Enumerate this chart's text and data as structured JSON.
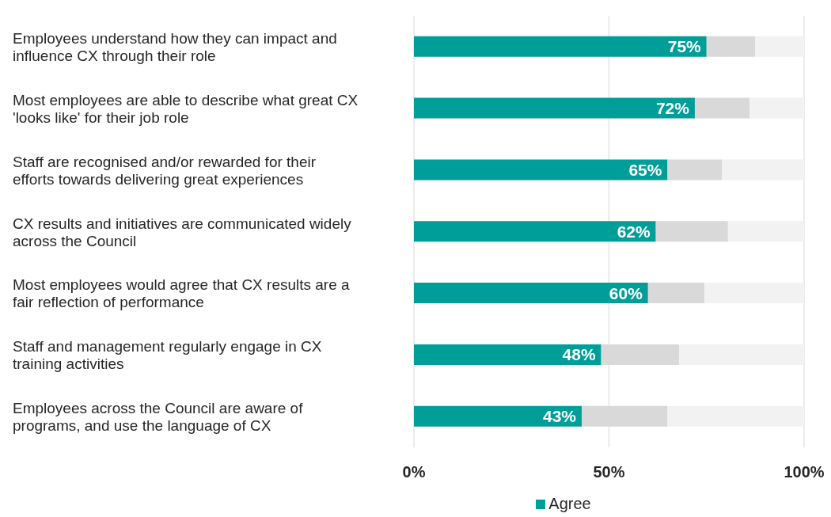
{
  "chart_data": {
    "type": "bar",
    "orientation": "horizontal",
    "stacked": true,
    "categories": [
      "Employees understand how they can impact and influence CX through their role",
      "Most employees are able to describe what great CX 'looks like' for their job role",
      "Staff are recognised and/or rewarded for their efforts towards delivering great experiences",
      "CX results and initiatives are communicated widely across the Council",
      "Most employees would agree that CX results are a fair reflection of performance",
      "Staff and management regularly engage in CX training activities",
      "Employees across the Council are aware of programs, and use the language of CX"
    ],
    "series": [
      {
        "name": "Agree",
        "color": "#009e99",
        "values": [
          75,
          72,
          65,
          62,
          60,
          48,
          43
        ],
        "value_labels": [
          "75%",
          "72%",
          "65%",
          "62%",
          "60%",
          "48%",
          "43%"
        ]
      },
      {
        "color": "#d9d9d9",
        "values": [
          12.5,
          14,
          14,
          18.5,
          14.5,
          20,
          22
        ]
      },
      {
        "color": "#f2f2f2",
        "values": [
          12.5,
          14,
          21,
          19.5,
          25.5,
          32,
          35
        ]
      }
    ],
    "xlim": [
      0,
      100
    ],
    "xticks": [
      {
        "value": 0,
        "label": "0%"
      },
      {
        "value": 50,
        "label": "50%"
      },
      {
        "value": 100,
        "label": "100%"
      }
    ],
    "grid": "x",
    "legend": "bottom"
  }
}
